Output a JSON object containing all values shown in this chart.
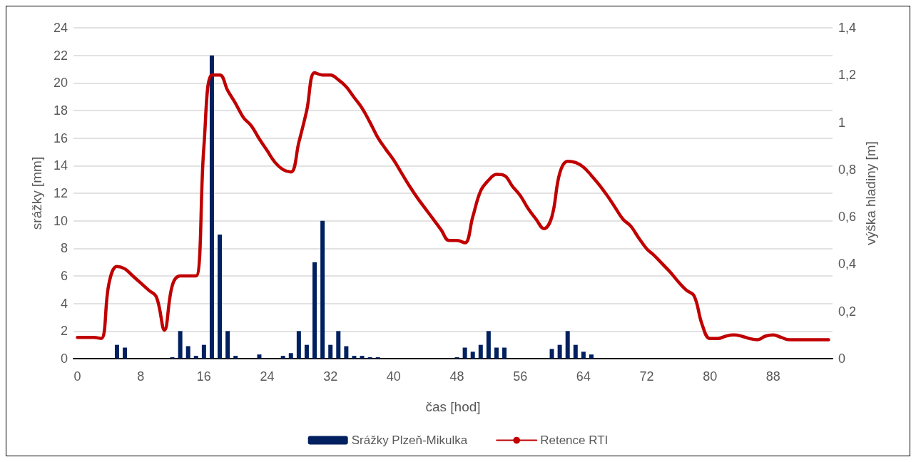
{
  "chart_data": {
    "type": "bar",
    "xlabel": "čas [hod]",
    "ylabel": "srážky [mm]",
    "y2label": "výška hladiny [m]",
    "categories": [
      "0",
      null,
      null,
      null,
      null,
      null,
      null,
      null,
      "8",
      null,
      null,
      null,
      null,
      null,
      null,
      null,
      "16",
      null,
      null,
      null,
      null,
      null,
      null,
      null,
      "24",
      null,
      null,
      null,
      null,
      null,
      null,
      null,
      "32",
      null,
      null,
      null,
      null,
      null,
      null,
      null,
      "40",
      null,
      null,
      null,
      null,
      null,
      null,
      null,
      "48",
      null,
      null,
      null,
      null,
      null,
      null,
      null,
      "56",
      null,
      null,
      null,
      null,
      null,
      null,
      null,
      "64",
      null,
      null,
      null,
      null,
      null,
      null,
      null,
      "72",
      null,
      null,
      null,
      null,
      null,
      null,
      null,
      "80",
      null,
      null,
      null,
      null,
      null,
      null,
      null,
      "88",
      null,
      null,
      null,
      null,
      null,
      null,
      null
    ],
    "series": [
      {
        "name": "Srážky Plzeň-Mikulka",
        "color": "#002060",
        "values": [
          0,
          0,
          0,
          0,
          0,
          1,
          0.8,
          0,
          0,
          0,
          0,
          0,
          0.1,
          2,
          0.9,
          0.2,
          1,
          22,
          9,
          2,
          0.2,
          0,
          0,
          0.3,
          0,
          0,
          0.2,
          0.4,
          2,
          1,
          7,
          10,
          1,
          2,
          0.9,
          0.2,
          0.2,
          0.1,
          0.1,
          0,
          0,
          0,
          0,
          0,
          0,
          0,
          0,
          0,
          0.1,
          0.8,
          0.5,
          1,
          2,
          0.8,
          0.8,
          0,
          0,
          0,
          0,
          0,
          0.7,
          1,
          2,
          1,
          0.5,
          0.3,
          0,
          0,
          0,
          0,
          0,
          0,
          0,
          0,
          0,
          0,
          0,
          0,
          0,
          0,
          0,
          0,
          0,
          0,
          0,
          0,
          0,
          0,
          0,
          0,
          0,
          0,
          0,
          0,
          0,
          0
        ]
      },
      {
        "name": "Retence RTI",
        "type": "line",
        "axis": "y2",
        "color": "#c00000",
        "values": [
          0.09,
          0.09,
          0.09,
          0.085,
          0.32,
          0.39,
          0.38,
          0.35,
          0.32,
          0.29,
          0.26,
          0.12,
          0.31,
          0.35,
          0.35,
          0.35,
          0.9,
          1.2,
          1.2,
          1.135,
          1.08,
          1.02,
          0.985,
          0.93,
          0.88,
          0.83,
          0.8,
          0.79,
          0.915,
          1.05,
          1.21,
          1.2,
          1.2,
          1.18,
          1.15,
          1.105,
          1.06,
          1,
          0.935,
          0.886,
          0.84,
          0.785,
          0.73,
          0.68,
          0.635,
          0.59,
          0.545,
          0.5,
          0.5,
          0.49,
          0.6,
          0.71,
          0.755,
          0.78,
          0.775,
          0.73,
          0.69,
          0.635,
          0.59,
          0.55,
          0.6,
          0.785,
          0.835,
          0.83,
          0.81,
          0.775,
          0.735,
          0.69,
          0.64,
          0.59,
          0.56,
          0.51,
          0.465,
          0.435,
          0.4,
          0.365,
          0.325,
          0.29,
          0.265,
          0.145,
          0.085,
          0.085,
          0.095,
          0.1,
          0.095,
          0.085,
          0.08,
          0.095,
          0.1,
          0.09,
          0.08,
          0.08,
          0.08,
          0.08,
          0.08,
          0.08
        ]
      }
    ],
    "ylim": [
      0,
      24
    ],
    "yticks": [
      0,
      2,
      4,
      6,
      8,
      10,
      12,
      14,
      16,
      18,
      20,
      22,
      24
    ],
    "y2lim": [
      0,
      1.4
    ],
    "y2ticks": [
      0,
      {
        "value": 0.2,
        "label": "0,2"
      },
      {
        "value": 0.4,
        "label": "0,4"
      },
      {
        "value": 0.6,
        "label": "0,6"
      },
      {
        "value": 0.8,
        "label": "0,8"
      },
      1,
      {
        "value": 1.2,
        "label": "1,2"
      },
      {
        "value": 1.4,
        "label": "1,4"
      }
    ],
    "grid": "y",
    "legend": "bottom",
    "marker": "none",
    "line_style": "solid"
  }
}
